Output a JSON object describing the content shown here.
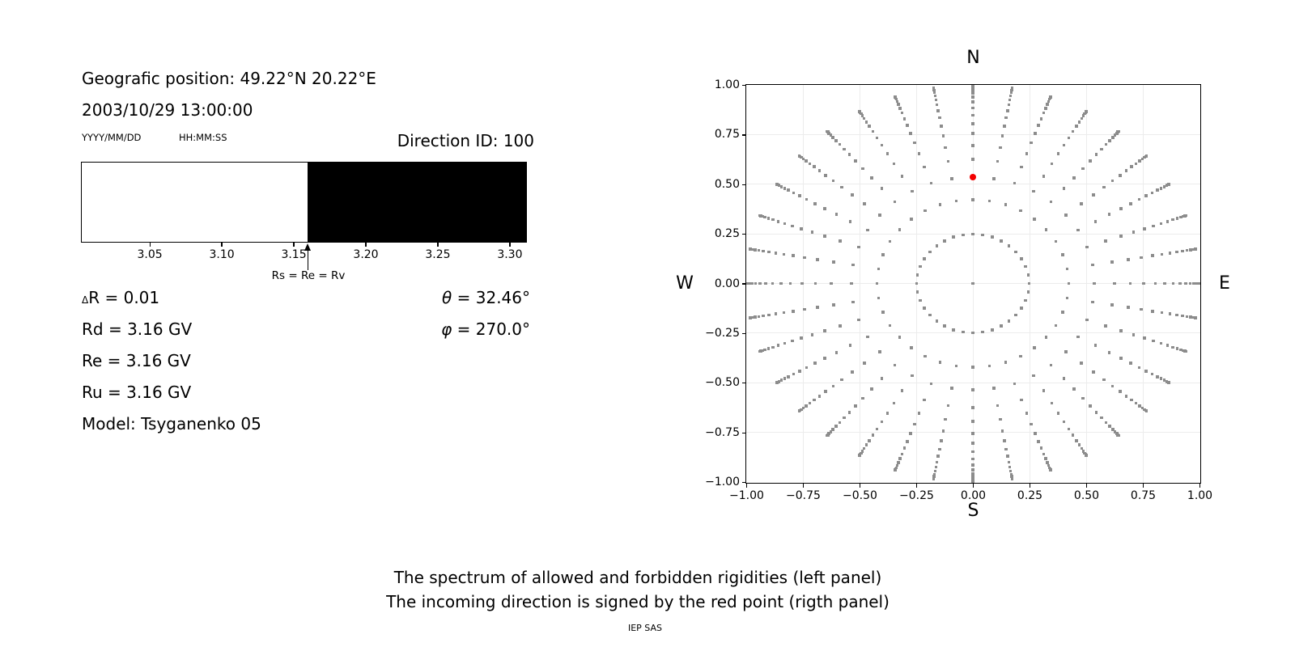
{
  "left_panel": {
    "position_line": "Geografic position: 49.22°N 20.22°E",
    "datetime_line": "2003/10/29 13:00:00",
    "date_format_hint": "YYYY/MM/DD",
    "time_format_hint": "HH:MM:SS",
    "direction_id_label": "Direction ID: 100",
    "arrow_label": "Rs = Re = Rv",
    "delta_symbol": "Δ",
    "delta_rest": "R = 0.01",
    "rd_line": "Rd = 3.16 GV",
    "re_line": "Re = 3.16 GV",
    "ru_line": "Ru = 3.16 GV",
    "model_line": "Model: Tsyganenko 05",
    "theta_symbol": "θ",
    "theta_rest": " = 32.46°",
    "phi_symbol": "φ",
    "phi_rest": " = 270.0°"
  },
  "right_panel": {
    "north_label": "N",
    "south_label": "S",
    "west_label": "W",
    "east_label": "E"
  },
  "captions": {
    "line1": "The spectrum of allowed and forbidden rigidities (left panel)",
    "line2": "The incoming direction is signed by the red point (rigth panel)",
    "credit": "IEP SAS"
  },
  "colors": {
    "forbidden_fill": "#000000",
    "allowed_fill": "#ffffff",
    "grid": "#ececec",
    "gray_dot": "#8c8c8c",
    "red_dot": "#f30000",
    "spine": "#000000"
  },
  "chart_data": [
    {
      "type": "bar",
      "panel": "left-rigidity-spectrum",
      "xlim": [
        3.003,
        3.311
      ],
      "x_tick_values": [
        3.05,
        3.1,
        3.15,
        3.2,
        3.25,
        3.3
      ],
      "x_tick_labels": [
        "3.05",
        "3.10",
        "3.15",
        "3.20",
        "3.25",
        "3.30"
      ],
      "allowed_region": {
        "from": 3.003,
        "to": 3.16
      },
      "forbidden_region": {
        "from": 3.16,
        "to": 3.311
      },
      "cutoff_annotation": {
        "x": 3.16,
        "label": "Rs = Re = Rv"
      },
      "values": {
        "delta_R": 0.01,
        "Rd_GV": 3.16,
        "Re_GV": 3.16,
        "Ru_GV": 3.16,
        "theta_deg": 32.46,
        "phi_deg": 270.0,
        "model": "Tsyganenko 05"
      }
    },
    {
      "type": "scatter",
      "panel": "right-incoming-direction-map",
      "xlim": [
        -1.0,
        1.0
      ],
      "ylim": [
        -1.0,
        1.0
      ],
      "tick_values": [
        -1.0,
        -0.75,
        -0.5,
        -0.25,
        0.0,
        0.25,
        0.5,
        0.75,
        1.0
      ],
      "x_tick_labels": [
        "−1.00",
        "−0.75",
        "−0.50",
        "−0.25",
        "0.00",
        "0.25",
        "0.50",
        "0.75",
        "1.00"
      ],
      "y_tick_labels": [
        "−1.00",
        "−0.75",
        "−0.50",
        "−0.25",
        "0.00",
        "0.25",
        "0.50",
        "0.75",
        "1.00"
      ],
      "grid": true,
      "legend": "none",
      "direction_grid": {
        "azimuth_start_deg": 0,
        "azimuth_step_deg": 10,
        "azimuth_count": 36,
        "radii_sin_zenith": [
          0.248,
          0.4227,
          0.5367,
          0.6242,
          0.6953,
          0.7546,
          0.8047,
          0.8472,
          0.8833,
          0.9138,
          0.9391,
          0.9596,
          0.9758,
          0.9877,
          0.9956,
          0.9995
        ],
        "center_dot": true
      },
      "selected_direction": {
        "plot_x": 0.0,
        "plot_y": 0.5367,
        "theta_deg": 32.46,
        "phi_deg": 270.0
      }
    }
  ]
}
